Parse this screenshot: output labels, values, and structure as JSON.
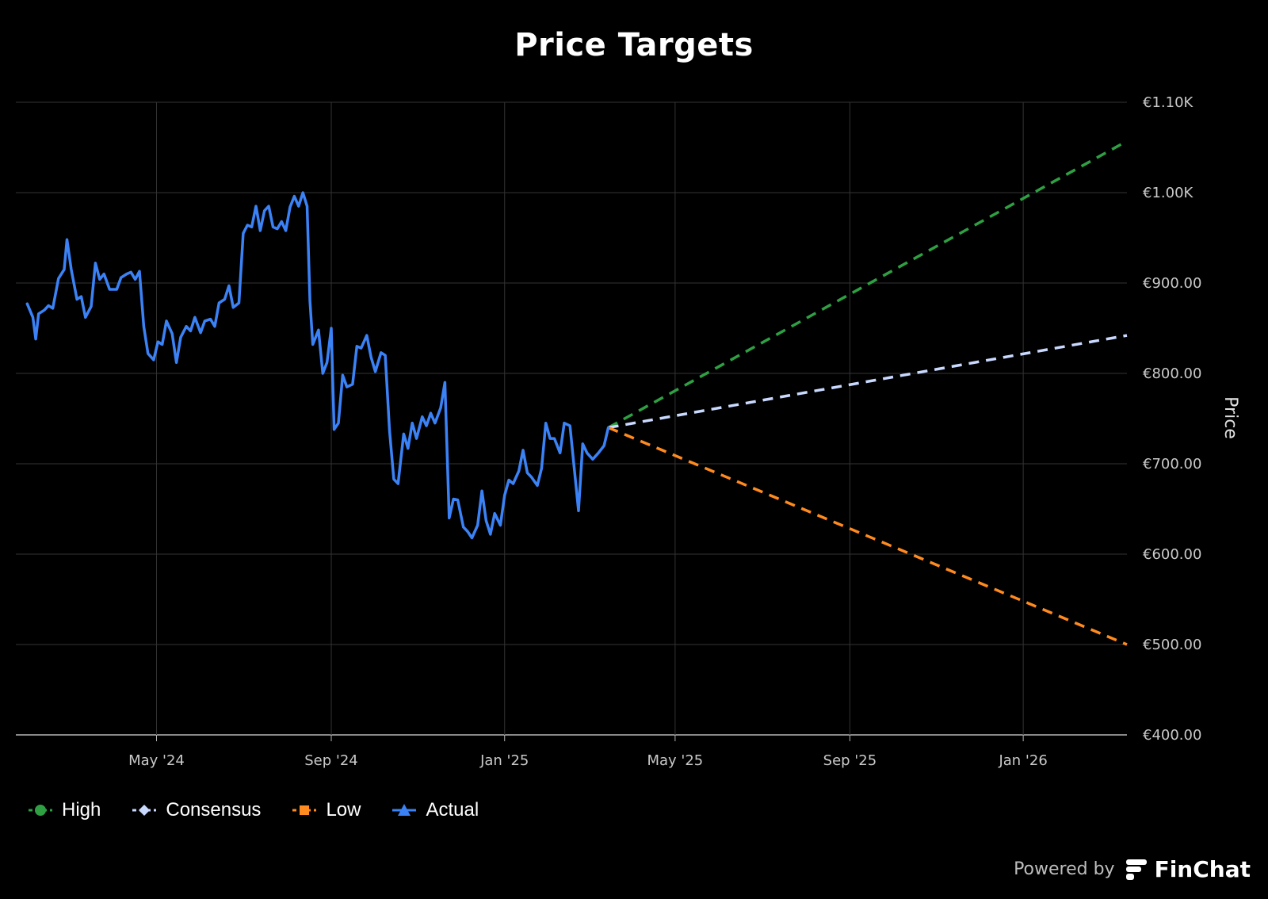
{
  "title": "Price Targets",
  "branding": {
    "prefix": "Powered by",
    "brand": "FinChat"
  },
  "legend": [
    {
      "label": "High",
      "color": "#2ea043",
      "marker": "circle"
    },
    {
      "label": "Consensus",
      "color": "#c9d9ff",
      "marker": "diamond"
    },
    {
      "label": "Low",
      "color": "#ff8a1f",
      "marker": "square"
    },
    {
      "label": "Actual",
      "color": "#3b82f6",
      "marker": "triangle"
    }
  ],
  "chart_data": {
    "type": "line",
    "title": "Price Targets",
    "ylabel": "Price",
    "ylim": [
      400,
      1100
    ],
    "xlim": [
      "2024-01-23",
      "2026-03-15"
    ],
    "y_ticks": [
      "€400.00",
      "€500.00",
      "€600.00",
      "€700.00",
      "€800.00",
      "€900.00",
      "€1.00K",
      "€1.10K"
    ],
    "y_tick_values": [
      400,
      500,
      600,
      700,
      800,
      900,
      1000,
      1100
    ],
    "x_ticks": [
      {
        "label": "May '24",
        "date": "2024-05-01"
      },
      {
        "label": "Sep '24",
        "date": "2024-09-01"
      },
      {
        "label": "Jan '25",
        "date": "2025-01-01"
      },
      {
        "label": "May '25",
        "date": "2025-05-01"
      },
      {
        "label": "Sep '25",
        "date": "2025-09-01"
      },
      {
        "label": "Jan '26",
        "date": "2026-01-01"
      }
    ],
    "grid": true,
    "legend_position": "bottom-left",
    "series": [
      {
        "name": "Actual",
        "color": "#3b82f6",
        "style": "solid",
        "points": [
          [
            "2024-01-31",
            877
          ],
          [
            "2024-02-04",
            862
          ],
          [
            "2024-02-06",
            838
          ],
          [
            "2024-02-08",
            866
          ],
          [
            "2024-02-12",
            870
          ],
          [
            "2024-02-15",
            875
          ],
          [
            "2024-02-18",
            872
          ],
          [
            "2024-02-22",
            905
          ],
          [
            "2024-02-26",
            915
          ],
          [
            "2024-02-28",
            948
          ],
          [
            "2024-03-02",
            915
          ],
          [
            "2024-03-06",
            882
          ],
          [
            "2024-03-09",
            885
          ],
          [
            "2024-03-12",
            862
          ],
          [
            "2024-03-16",
            874
          ],
          [
            "2024-03-19",
            922
          ],
          [
            "2024-03-22",
            904
          ],
          [
            "2024-03-25",
            910
          ],
          [
            "2024-03-29",
            893
          ],
          [
            "2024-04-03",
            893
          ],
          [
            "2024-04-06",
            906
          ],
          [
            "2024-04-10",
            910
          ],
          [
            "2024-04-13",
            912
          ],
          [
            "2024-04-16",
            904
          ],
          [
            "2024-04-19",
            913
          ],
          [
            "2024-04-22",
            852
          ],
          [
            "2024-04-25",
            822
          ],
          [
            "2024-04-29",
            815
          ],
          [
            "2024-05-02",
            835
          ],
          [
            "2024-05-05",
            832
          ],
          [
            "2024-05-08",
            858
          ],
          [
            "2024-05-12",
            844
          ],
          [
            "2024-05-15",
            812
          ],
          [
            "2024-05-18",
            840
          ],
          [
            "2024-05-22",
            852
          ],
          [
            "2024-05-25",
            847
          ],
          [
            "2024-05-28",
            862
          ],
          [
            "2024-06-01",
            845
          ],
          [
            "2024-06-04",
            858
          ],
          [
            "2024-06-08",
            860
          ],
          [
            "2024-06-11",
            852
          ],
          [
            "2024-06-14",
            878
          ],
          [
            "2024-06-18",
            882
          ],
          [
            "2024-06-21",
            897
          ],
          [
            "2024-06-24",
            873
          ],
          [
            "2024-06-28",
            878
          ],
          [
            "2024-07-01",
            955
          ],
          [
            "2024-07-04",
            964
          ],
          [
            "2024-07-07",
            962
          ],
          [
            "2024-07-10",
            985
          ],
          [
            "2024-07-13",
            958
          ],
          [
            "2024-07-16",
            980
          ],
          [
            "2024-07-19",
            985
          ],
          [
            "2024-07-22",
            962
          ],
          [
            "2024-07-25",
            960
          ],
          [
            "2024-07-28",
            968
          ],
          [
            "2024-07-31",
            958
          ],
          [
            "2024-08-03",
            984
          ],
          [
            "2024-08-06",
            996
          ],
          [
            "2024-08-09",
            985
          ],
          [
            "2024-08-12",
            1000
          ],
          [
            "2024-08-15",
            985
          ],
          [
            "2024-08-17",
            880
          ],
          [
            "2024-08-19",
            832
          ],
          [
            "2024-08-23",
            848
          ],
          [
            "2024-08-26",
            800
          ],
          [
            "2024-08-29",
            812
          ],
          [
            "2024-09-01",
            850
          ],
          [
            "2024-09-03",
            738
          ],
          [
            "2024-09-06",
            745
          ],
          [
            "2024-09-09",
            798
          ],
          [
            "2024-09-12",
            785
          ],
          [
            "2024-09-16",
            788
          ],
          [
            "2024-09-19",
            830
          ],
          [
            "2024-09-22",
            828
          ],
          [
            "2024-09-26",
            842
          ],
          [
            "2024-09-29",
            818
          ],
          [
            "2024-10-02",
            802
          ],
          [
            "2024-10-06",
            823
          ],
          [
            "2024-10-09",
            820
          ],
          [
            "2024-10-12",
            737
          ],
          [
            "2024-10-15",
            683
          ],
          [
            "2024-10-18",
            678
          ],
          [
            "2024-10-22",
            733
          ],
          [
            "2024-10-25",
            717
          ],
          [
            "2024-10-28",
            745
          ],
          [
            "2024-10-31",
            728
          ],
          [
            "2024-11-04",
            752
          ],
          [
            "2024-11-07",
            742
          ],
          [
            "2024-11-10",
            756
          ],
          [
            "2024-11-13",
            745
          ],
          [
            "2024-11-17",
            762
          ],
          [
            "2024-11-20",
            790
          ],
          [
            "2024-11-23",
            640
          ],
          [
            "2024-11-26",
            661
          ],
          [
            "2024-11-29",
            660
          ],
          [
            "2024-12-03",
            630
          ],
          [
            "2024-12-06",
            625
          ],
          [
            "2024-12-09",
            618
          ],
          [
            "2024-12-13",
            632
          ],
          [
            "2024-12-16",
            670
          ],
          [
            "2024-12-19",
            637
          ],
          [
            "2024-12-22",
            622
          ],
          [
            "2024-12-25",
            645
          ],
          [
            "2024-12-29",
            632
          ],
          [
            "2025-01-01",
            665
          ],
          [
            "2025-01-04",
            682
          ],
          [
            "2025-01-07",
            678
          ],
          [
            "2025-01-11",
            692
          ],
          [
            "2025-01-14",
            715
          ],
          [
            "2025-01-17",
            690
          ],
          [
            "2025-01-20",
            685
          ],
          [
            "2025-01-24",
            676
          ],
          [
            "2025-01-27",
            695
          ],
          [
            "2025-01-30",
            745
          ],
          [
            "2025-02-02",
            728
          ],
          [
            "2025-02-05",
            728
          ],
          [
            "2025-02-09",
            712
          ],
          [
            "2025-02-12",
            745
          ],
          [
            "2025-02-16",
            742
          ],
          [
            "2025-02-19",
            695
          ],
          [
            "2025-02-22",
            648
          ],
          [
            "2025-02-25",
            722
          ],
          [
            "2025-02-28",
            712
          ],
          [
            "2025-03-04",
            705
          ],
          [
            "2025-03-08",
            712
          ],
          [
            "2025-03-12",
            720
          ],
          [
            "2025-03-15",
            740
          ]
        ]
      },
      {
        "name": "High",
        "color": "#2ea043",
        "style": "dashed",
        "points": [
          [
            "2025-03-15",
            740
          ],
          [
            "2026-03-15",
            1057
          ]
        ]
      },
      {
        "name": "Consensus",
        "color": "#c9d9ff",
        "style": "dashed",
        "points": [
          [
            "2025-03-15",
            740
          ],
          [
            "2026-03-15",
            842
          ]
        ]
      },
      {
        "name": "Low",
        "color": "#ff8a1f",
        "style": "dashed",
        "points": [
          [
            "2025-03-15",
            740
          ],
          [
            "2026-03-15",
            500
          ]
        ]
      }
    ]
  }
}
